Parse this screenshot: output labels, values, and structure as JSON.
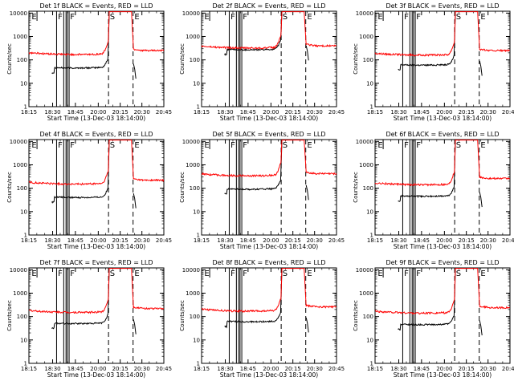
{
  "colors": {
    "events": "#000000",
    "lld": "#ff0000",
    "axes": "#000000",
    "background": "#ffffff"
  },
  "shared": {
    "ylabel": "Counts/sec",
    "xlabel": "Start Time (13-Dec-03 18:14:00)",
    "x_tick_labels": [
      "18:15",
      "18:30",
      "18:45",
      "20:00",
      "20:15",
      "20:30",
      "20:45"
    ],
    "y_tick_labels": [
      "1",
      "10",
      "100",
      "1000",
      "10000"
    ]
  },
  "chart_data": [
    {
      "type": "line",
      "title": "Det 1f BLACK = Events, RED = LLD",
      "ylim": [
        1,
        12000
      ],
      "yscale": "log",
      "segment_letters": [
        "E",
        "F",
        "F",
        "S",
        "E"
      ],
      "series": [
        {
          "name": "Events",
          "color": "#000000",
          "level": 45
        },
        {
          "name": "LLD",
          "color": "#ff0000",
          "level": 170,
          "peak": true,
          "tail": 250
        }
      ]
    },
    {
      "type": "line",
      "title": "Det 2f BLACK = Events, RED = LLD",
      "ylim": [
        1,
        12000
      ],
      "yscale": "log",
      "segment_letters": [
        "E",
        "F",
        "F",
        "S",
        "E"
      ],
      "series": [
        {
          "name": "Events",
          "color": "#000000",
          "level": 270
        },
        {
          "name": "LLD",
          "color": "#ff0000",
          "level": 320,
          "peak": true,
          "tail": 400
        }
      ]
    },
    {
      "type": "line",
      "title": "Det 3f BLACK = Events, RED = LLD",
      "ylim": [
        1,
        12000
      ],
      "yscale": "log",
      "segment_letters": [
        "E",
        "F",
        "F",
        "S",
        "E"
      ],
      "series": [
        {
          "name": "Events",
          "color": "#000000",
          "level": 60
        },
        {
          "name": "LLD",
          "color": "#ff0000",
          "level": 160,
          "peak": true,
          "tail": 250
        }
      ]
    },
    {
      "type": "line",
      "title": "Det 4f BLACK = Events, RED = LLD",
      "ylim": [
        1,
        12000
      ],
      "yscale": "log",
      "segment_letters": [
        "E",
        "F",
        "F",
        "S",
        "E"
      ],
      "series": [
        {
          "name": "Events",
          "color": "#000000",
          "level": 40
        },
        {
          "name": "LLD",
          "color": "#ff0000",
          "level": 150,
          "peak": true,
          "tail": 220
        }
      ]
    },
    {
      "type": "line",
      "title": "Det 5f BLACK = Events, RED = LLD",
      "ylim": [
        1,
        12000
      ],
      "yscale": "log",
      "segment_letters": [
        "E",
        "F",
        "F",
        "S",
        "E"
      ],
      "series": [
        {
          "name": "Events",
          "color": "#000000",
          "level": 90
        },
        {
          "name": "LLD",
          "color": "#ff0000",
          "level": 340,
          "peak": true,
          "tail": 420
        }
      ]
    },
    {
      "type": "line",
      "title": "Det 6f BLACK = Events, RED = LLD",
      "ylim": [
        1,
        12000
      ],
      "yscale": "log",
      "segment_letters": [
        "E",
        "F",
        "F",
        "S",
        "E"
      ],
      "series": [
        {
          "name": "Events",
          "color": "#000000",
          "level": 45
        },
        {
          "name": "LLD",
          "color": "#ff0000",
          "level": 140,
          "peak": true,
          "tail": 260
        }
      ]
    },
    {
      "type": "line",
      "title": "Det 7f BLACK = Events, RED = LLD",
      "ylim": [
        1,
        12000
      ],
      "yscale": "log",
      "segment_letters": [
        "E",
        "F",
        "F",
        "S",
        "E"
      ],
      "series": [
        {
          "name": "Events",
          "color": "#000000",
          "level": 50
        },
        {
          "name": "LLD",
          "color": "#ff0000",
          "level": 150,
          "peak": true,
          "tail": 220
        }
      ]
    },
    {
      "type": "line",
      "title": "Det 8f BLACK = Events, RED = LLD",
      "ylim": [
        1,
        12000
      ],
      "yscale": "log",
      "segment_letters": [
        "E",
        "F",
        "F",
        "S",
        "E"
      ],
      "series": [
        {
          "name": "Events",
          "color": "#000000",
          "level": 60
        },
        {
          "name": "LLD",
          "color": "#ff0000",
          "level": 170,
          "peak": true,
          "tail": 260
        }
      ]
    },
    {
      "type": "line",
      "title": "Det 9f BLACK = Events, RED = LLD",
      "ylim": [
        1,
        12000
      ],
      "yscale": "log",
      "segment_letters": [
        "E",
        "F",
        "F",
        "S",
        "E"
      ],
      "series": [
        {
          "name": "Events",
          "color": "#000000",
          "level": 45
        },
        {
          "name": "LLD",
          "color": "#ff0000",
          "level": 140,
          "peak": true,
          "tail": 240
        }
      ]
    }
  ]
}
